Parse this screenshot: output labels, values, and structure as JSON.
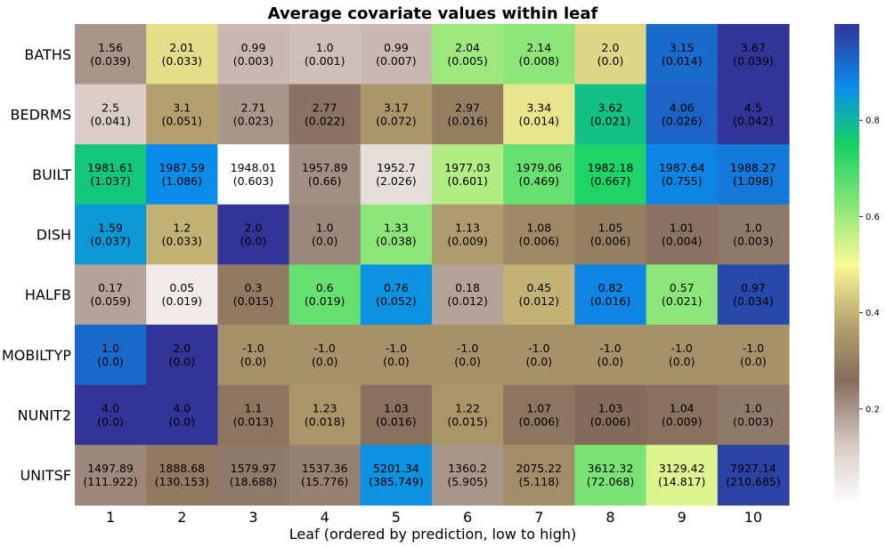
{
  "chart_data": {
    "type": "heatmap",
    "title": "Average covariate values within leaf",
    "xlabel": "Leaf (ordered by prediction, low to high)",
    "ylabel": "",
    "columns": [
      "1",
      "2",
      "3",
      "4",
      "5",
      "6",
      "7",
      "8",
      "9",
      "10"
    ],
    "rows": [
      "BATHS",
      "BEDRMS",
      "BUILT",
      "DISH",
      "HALFB",
      "MOBILTYP",
      "NUNIT2",
      "UNITSF"
    ],
    "values": [
      [
        "1.56",
        "2.01",
        "0.99",
        "1.0",
        "0.99",
        "2.04",
        "2.14",
        "2.0",
        "3.15",
        "3.67"
      ],
      [
        "2.5",
        "3.1",
        "2.71",
        "2.77",
        "3.17",
        "2.97",
        "3.34",
        "3.62",
        "4.06",
        "4.5"
      ],
      [
        "1981.61",
        "1987.59",
        "1948.01",
        "1957.89",
        "1952.7",
        "1977.03",
        "1979.06",
        "1982.18",
        "1987.64",
        "1988.27"
      ],
      [
        "1.59",
        "1.2",
        "2.0",
        "1.0",
        "1.33",
        "1.13",
        "1.08",
        "1.05",
        "1.01",
        "1.0"
      ],
      [
        "0.17",
        "0.05",
        "0.3",
        "0.6",
        "0.76",
        "0.18",
        "0.45",
        "0.82",
        "0.57",
        "0.97"
      ],
      [
        "1.0",
        "2.0",
        "-1.0",
        "-1.0",
        "-1.0",
        "-1.0",
        "-1.0",
        "-1.0",
        "-1.0",
        "-1.0"
      ],
      [
        "4.0",
        "4.0",
        "1.1",
        "1.23",
        "1.03",
        "1.22",
        "1.07",
        "1.03",
        "1.04",
        "1.0"
      ],
      [
        "1497.89",
        "1888.68",
        "1579.97",
        "1537.36",
        "5201.34",
        "1360.2",
        "2075.22",
        "3612.32",
        "3129.42",
        "7927.14"
      ]
    ],
    "std_errors": [
      [
        "(0.039)",
        "(0.033)",
        "(0.003)",
        "(0.001)",
        "(0.007)",
        "(0.005)",
        "(0.008)",
        "(0.0)",
        "(0.014)",
        "(0.039)"
      ],
      [
        "(0.041)",
        "(0.051)",
        "(0.023)",
        "(0.022)",
        "(0.072)",
        "(0.016)",
        "(0.014)",
        "(0.021)",
        "(0.026)",
        "(0.042)"
      ],
      [
        "(1.037)",
        "(1.086)",
        "(0.603)",
        "(0.66)",
        "(2.026)",
        "(0.601)",
        "(0.469)",
        "(0.667)",
        "(0.755)",
        "(1.098)"
      ],
      [
        "(0.037)",
        "(0.033)",
        "(0.0)",
        "(0.0)",
        "(0.038)",
        "(0.009)",
        "(0.006)",
        "(0.006)",
        "(0.004)",
        "(0.003)"
      ],
      [
        "(0.059)",
        "(0.019)",
        "(0.015)",
        "(0.019)",
        "(0.052)",
        "(0.012)",
        "(0.012)",
        "(0.016)",
        "(0.021)",
        "(0.034)"
      ],
      [
        "(0.0)",
        "(0.0)",
        "(0.0)",
        "(0.0)",
        "(0.0)",
        "(0.0)",
        "(0.0)",
        "(0.0)",
        "(0.0)",
        "(0.0)"
      ],
      [
        "(0.0)",
        "(0.0)",
        "(0.013)",
        "(0.018)",
        "(0.016)",
        "(0.015)",
        "(0.006)",
        "(0.006)",
        "(0.009)",
        "(0.003)"
      ],
      [
        "(111.922)",
        "(130.153)",
        "(18.688)",
        "(15.776)",
        "(385.749)",
        "(5.905)",
        "(5.118)",
        "(72.068)",
        "(14.817)",
        "(210.685)"
      ]
    ],
    "normalized": [
      [
        0.2,
        0.46,
        0.15,
        0.14,
        0.15,
        0.6,
        0.62,
        0.45,
        0.92,
        1.0
      ],
      [
        0.12,
        0.37,
        0.2,
        0.25,
        0.35,
        0.3,
        0.47,
        0.78,
        0.93,
        1.0
      ],
      [
        0.77,
        0.87,
        0.0,
        0.21,
        0.08,
        0.58,
        0.66,
        0.74,
        0.88,
        0.9
      ],
      [
        0.85,
        0.4,
        1.0,
        0.22,
        0.62,
        0.36,
        0.32,
        0.3,
        0.25,
        0.24
      ],
      [
        0.18,
        0.05,
        0.29,
        0.66,
        0.86,
        0.18,
        0.4,
        0.88,
        0.62,
        0.97
      ],
      [
        0.92,
        1.0,
        0.34,
        0.34,
        0.34,
        0.34,
        0.34,
        0.34,
        0.34,
        0.34
      ],
      [
        1.0,
        1.0,
        0.28,
        0.35,
        0.27,
        0.35,
        0.28,
        0.26,
        0.27,
        0.24
      ],
      [
        0.22,
        0.29,
        0.24,
        0.23,
        0.86,
        0.2,
        0.33,
        0.64,
        0.53,
        0.98
      ]
    ],
    "colorscale": {
      "name": "terrain_r",
      "range": [
        0,
        1
      ],
      "ticks": [
        "0.2",
        "0.4",
        "0.6",
        "0.8"
      ],
      "tick_values": [
        0.2,
        0.4,
        0.6,
        0.8
      ]
    }
  }
}
